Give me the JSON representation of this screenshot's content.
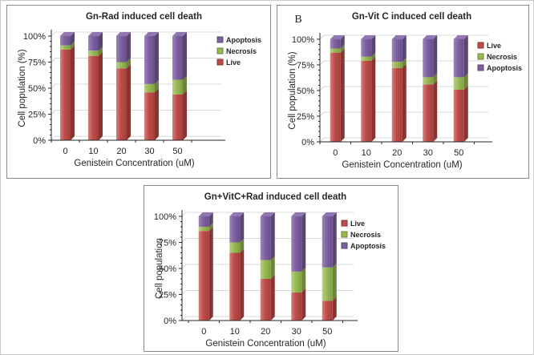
{
  "figure": {
    "background": "#ffffff",
    "outer_border_color": "#c9c9c9",
    "panel_border_color": "#8a8a8a",
    "gridline_color": "#d9d9d9",
    "axis_color": "#262626",
    "series_colors": {
      "Live": "#be4b48",
      "Necrosis": "#98b954",
      "Apoptosis": "#7d60a0"
    }
  },
  "chart_data": [
    {
      "type": "bar",
      "stacked": true,
      "panel_label": "",
      "title": "Gn-Rad induced cell death",
      "xlabel": "Genistein Concentration (uM)",
      "ylabel": "Cell population (%)",
      "categories": [
        "0",
        "10",
        "20",
        "30",
        "50"
      ],
      "ytick_labels": [
        "0%",
        "25%",
        "50%",
        "75%",
        "100%"
      ],
      "ylim": [
        0,
        100
      ],
      "grid": true,
      "legend_position": "right",
      "legend_order": [
        "Apoptosis",
        "Necrosis",
        "Live"
      ],
      "series": [
        {
          "name": "Live",
          "color": "#be4b48",
          "values": [
            87,
            81,
            69,
            46,
            44
          ]
        },
        {
          "name": "Necrosis",
          "color": "#98b954",
          "values": [
            4,
            5,
            6,
            8,
            14
          ]
        },
        {
          "name": "Apoptosis",
          "color": "#7d60a0",
          "values": [
            9,
            14,
            25,
            46,
            42
          ]
        }
      ]
    },
    {
      "type": "bar",
      "stacked": true,
      "panel_label": "B",
      "title": "Gn-Vit C induced cell death",
      "xlabel": "Genistein Concentration (uM)",
      "ylabel": "Cell population (%)",
      "categories": [
        "0",
        "10",
        "20",
        "30",
        "50"
      ],
      "ytick_labels": [
        "0%",
        "25%",
        "50%",
        "75%",
        "100%"
      ],
      "ylim": [
        0,
        100
      ],
      "grid": true,
      "legend_position": "right",
      "legend_order": [
        "Live",
        "Necrosis",
        "Apoptosis"
      ],
      "series": [
        {
          "name": "Live",
          "color": "#be4b48",
          "values": [
            87,
            79,
            72,
            56,
            51
          ]
        },
        {
          "name": "Necrosis",
          "color": "#98b954",
          "values": [
            4,
            4,
            6,
            7,
            12
          ]
        },
        {
          "name": "Apoptosis",
          "color": "#7d60a0",
          "values": [
            9,
            17,
            22,
            37,
            37
          ]
        }
      ]
    },
    {
      "type": "bar",
      "stacked": true,
      "panel_label": "",
      "title": "Gn+VitC+Rad induced cell death",
      "xlabel": "Genistein Concentration (uM)",
      "ylabel": "Cell population",
      "categories": [
        "0",
        "10",
        "20",
        "30",
        "50"
      ],
      "ytick_labels": [
        "0%",
        "25%",
        "50%",
        "75%",
        "100%"
      ],
      "ylim": [
        0,
        100
      ],
      "grid": true,
      "legend_position": "right",
      "legend_order": [
        "Live",
        "Necrosis",
        "Apoptosis"
      ],
      "series": [
        {
          "name": "Live",
          "color": "#be4b48",
          "values": [
            86,
            65,
            40,
            27,
            19
          ]
        },
        {
          "name": "Necrosis",
          "color": "#98b954",
          "values": [
            4,
            10,
            18,
            20,
            32
          ]
        },
        {
          "name": "Apoptosis",
          "color": "#7d60a0",
          "values": [
            10,
            25,
            42,
            53,
            49
          ]
        }
      ]
    }
  ]
}
